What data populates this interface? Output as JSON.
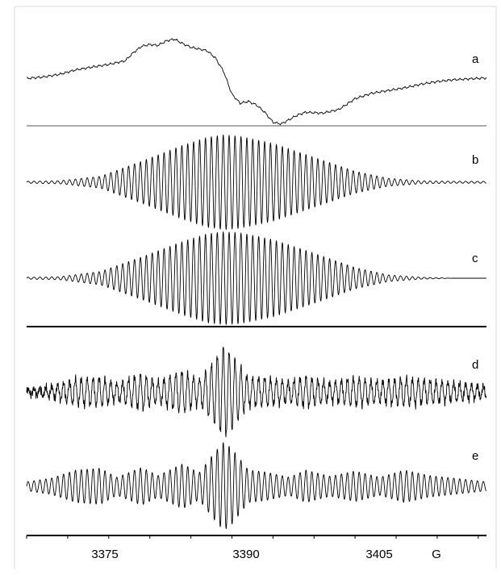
{
  "chart_data": {
    "type": "line",
    "title": "",
    "xlabel": "G",
    "xlim": [
      3366,
      3422
    ],
    "xticks": [
      3375,
      3390,
      3405
    ],
    "tick_labels": [
      "3375",
      "3390",
      "3405"
    ],
    "grid": false,
    "panels": [
      {
        "label": "a",
        "kind": "experimental",
        "x": [
          3366,
          3368,
          3370,
          3372,
          3374,
          3376,
          3378,
          3379,
          3380,
          3381,
          3382,
          3383,
          3384,
          3385,
          3386,
          3387,
          3388,
          3389,
          3390,
          3391,
          3392,
          3393,
          3394,
          3395,
          3396,
          3397,
          3398,
          3399,
          3400,
          3402,
          3404,
          3406,
          3408,
          3410,
          3412,
          3414,
          3416,
          3418,
          3420,
          3422
        ],
        "y": [
          0.05,
          0.08,
          0.14,
          0.24,
          0.3,
          0.36,
          0.44,
          0.62,
          0.76,
          0.8,
          0.78,
          0.88,
          0.92,
          0.82,
          0.74,
          0.7,
          0.66,
          0.5,
          0.2,
          -0.3,
          -0.5,
          -0.46,
          -0.54,
          -0.7,
          -0.92,
          -0.96,
          -0.86,
          -0.76,
          -0.7,
          -0.72,
          -0.64,
          -0.4,
          -0.28,
          -0.22,
          -0.16,
          -0.08,
          -0.02,
          0.02,
          0.04,
          0.06
        ]
      },
      {
        "label": "b",
        "kind": "simulation",
        "envelope_x": [
          3366,
          3370,
          3375,
          3380,
          3385,
          3388,
          3390,
          3392,
          3396,
          3401,
          3406,
          3410,
          3414,
          3418,
          3422
        ],
        "envelope_y": [
          0.02,
          0.03,
          0.12,
          0.42,
          0.74,
          0.9,
          0.95,
          0.92,
          0.78,
          0.5,
          0.22,
          0.08,
          0.03,
          0.02,
          0.02
        ]
      },
      {
        "label": "c",
        "kind": "simulation",
        "envelope_x": [
          3366,
          3370,
          3375,
          3380,
          3385,
          3388,
          3390,
          3392,
          3396,
          3401,
          3406,
          3410,
          3414,
          3418,
          3422
        ],
        "envelope_y": [
          0.02,
          0.03,
          0.14,
          0.44,
          0.76,
          0.92,
          0.96,
          0.94,
          0.8,
          0.52,
          0.22,
          0.07,
          0.02,
          0.0,
          0.0
        ]
      },
      {
        "label": "d",
        "kind": "experimental",
        "envelope_x": [
          3366,
          3369,
          3372,
          3375,
          3377,
          3380,
          3382,
          3385,
          3387,
          3389,
          3390,
          3391,
          3393,
          3395,
          3398,
          3400,
          3403,
          3406,
          3409,
          3412,
          3415,
          3418,
          3422
        ],
        "envelope_y": [
          0.05,
          0.12,
          0.28,
          0.3,
          0.18,
          0.38,
          0.22,
          0.45,
          0.26,
          0.7,
          0.98,
          0.8,
          0.3,
          0.3,
          0.22,
          0.32,
          0.2,
          0.3,
          0.22,
          0.3,
          0.24,
          0.2,
          0.12
        ]
      },
      {
        "label": "e",
        "kind": "simulation",
        "envelope_x": [
          3366,
          3369,
          3372,
          3375,
          3377,
          3380,
          3382,
          3385,
          3387,
          3389,
          3390,
          3391,
          3393,
          3395,
          3398,
          3400,
          3403,
          3406,
          3409,
          3412,
          3415,
          3418,
          3422
        ],
        "envelope_y": [
          0.1,
          0.18,
          0.36,
          0.4,
          0.2,
          0.42,
          0.24,
          0.5,
          0.3,
          0.78,
          0.98,
          0.84,
          0.36,
          0.32,
          0.2,
          0.36,
          0.22,
          0.34,
          0.2,
          0.36,
          0.24,
          0.18,
          0.1
        ]
      }
    ]
  }
}
